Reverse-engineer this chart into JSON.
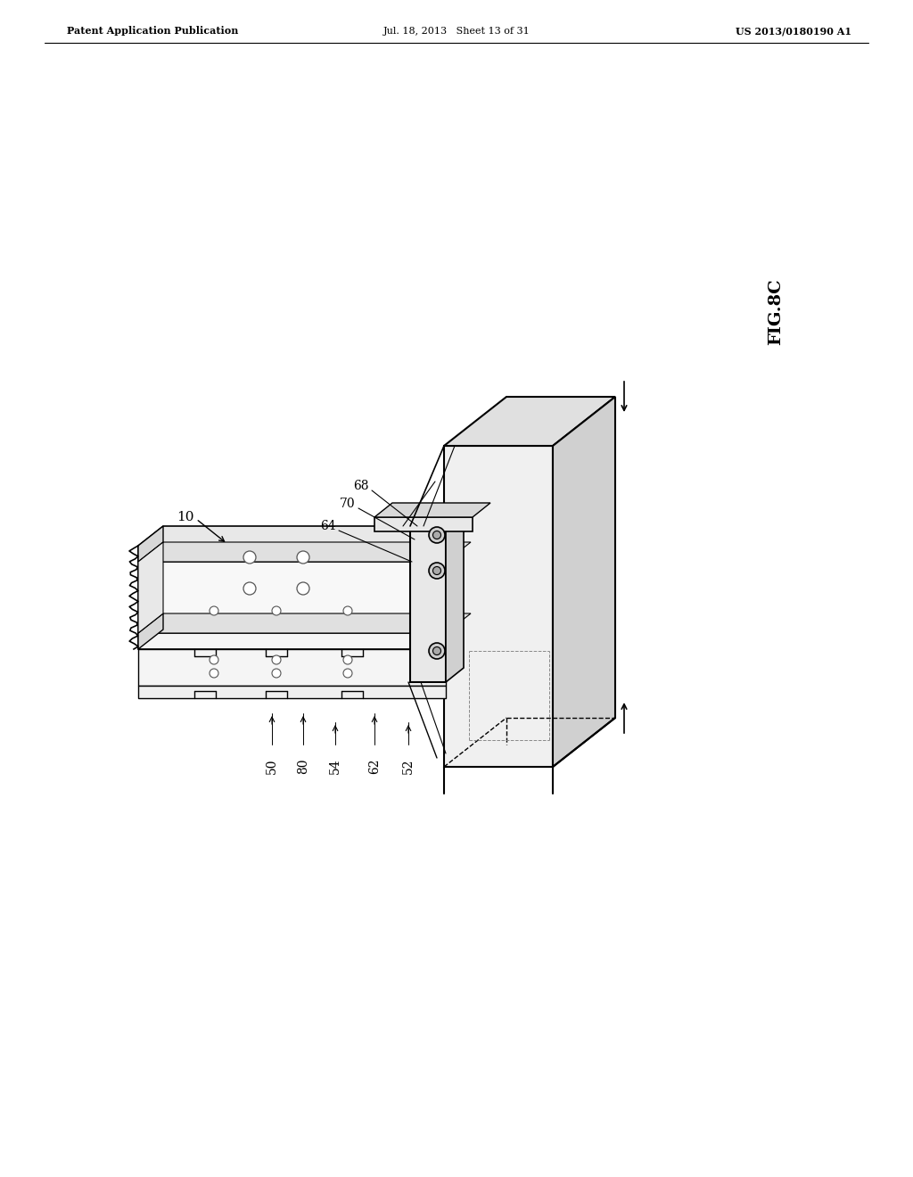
{
  "background_color": "#ffffff",
  "page_width": 10.24,
  "page_height": 13.2,
  "header": {
    "left": "Patent Application Publication",
    "center": "Jul. 18, 2013   Sheet 13 of 31",
    "right": "US 2013/0180190 A1"
  },
  "fig_label": "FIG.8C",
  "line_color": "#000000",
  "light_gray": "#d8d8d8",
  "mid_gray": "#b8b8b8",
  "dark_gray": "#888888",
  "fill_white": "#ffffff",
  "dashed_gray": "#aaaaaa"
}
